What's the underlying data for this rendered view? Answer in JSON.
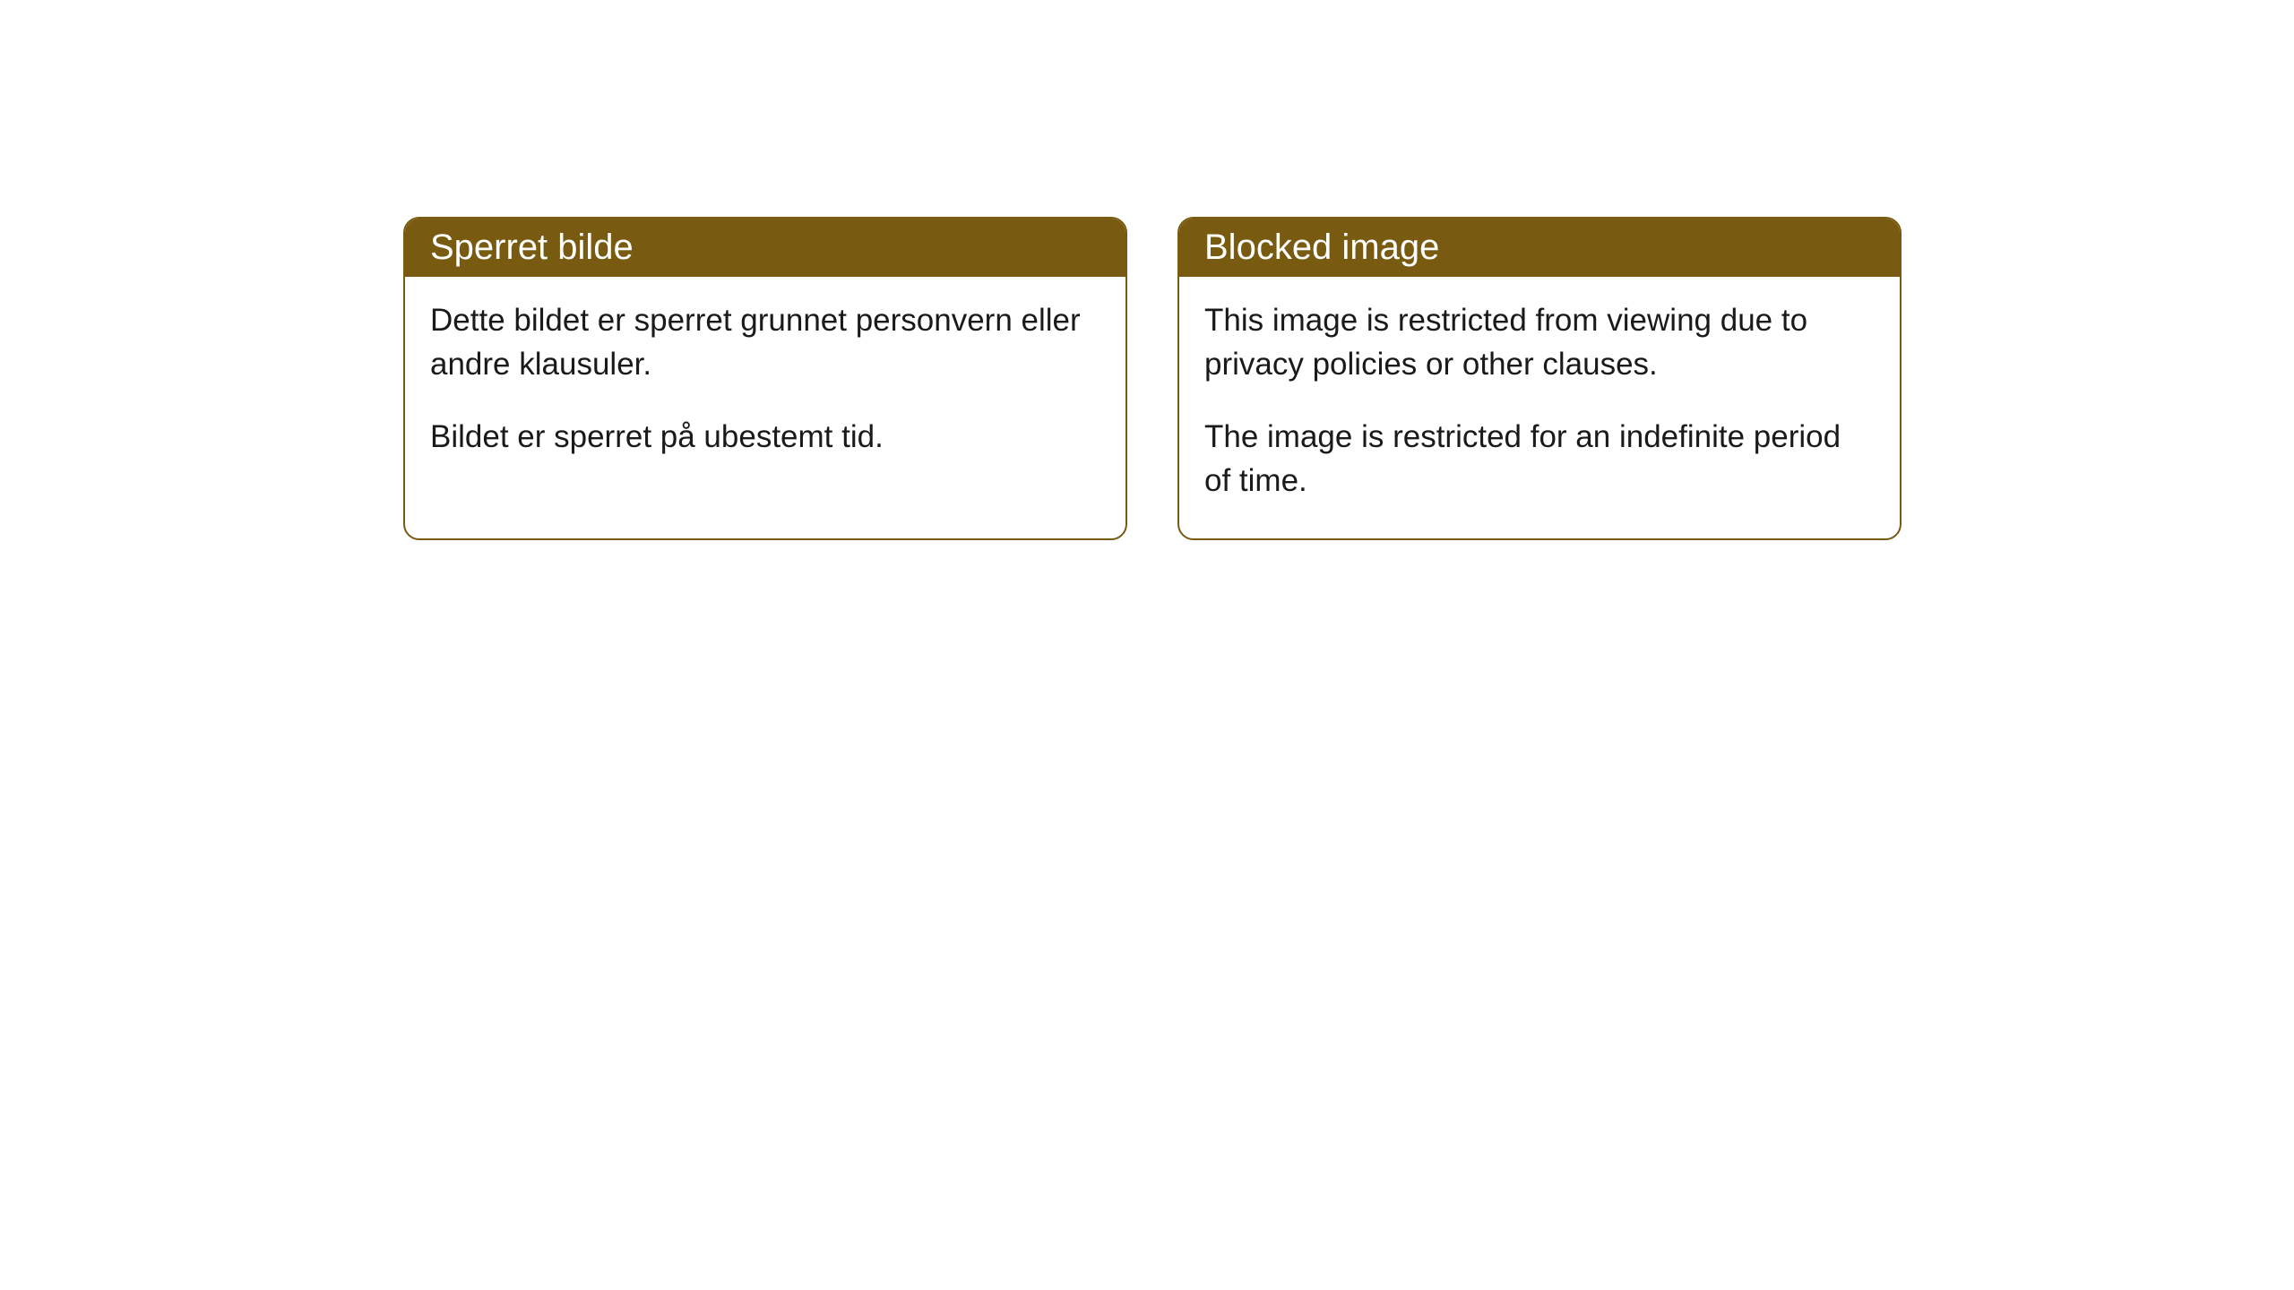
{
  "cards": [
    {
      "title": "Sperret bilde",
      "paragraph1": "Dette bildet er sperret grunnet personvern eller andre klausuler.",
      "paragraph2": "Bildet er sperret på ubestemt tid."
    },
    {
      "title": "Blocked image",
      "paragraph1": "This image is restricted from viewing due to privacy policies or other clauses.",
      "paragraph2": "The image is restricted for an indefinite period of time."
    }
  ],
  "style": {
    "header_bg_color": "#785a10",
    "header_text_color": "#ffffff",
    "border_color": "#785a10",
    "body_text_color": "#1a1a1a",
    "card_bg_color": "#ffffff",
    "border_radius": 18,
    "header_fontsize": 40,
    "body_fontsize": 35
  }
}
